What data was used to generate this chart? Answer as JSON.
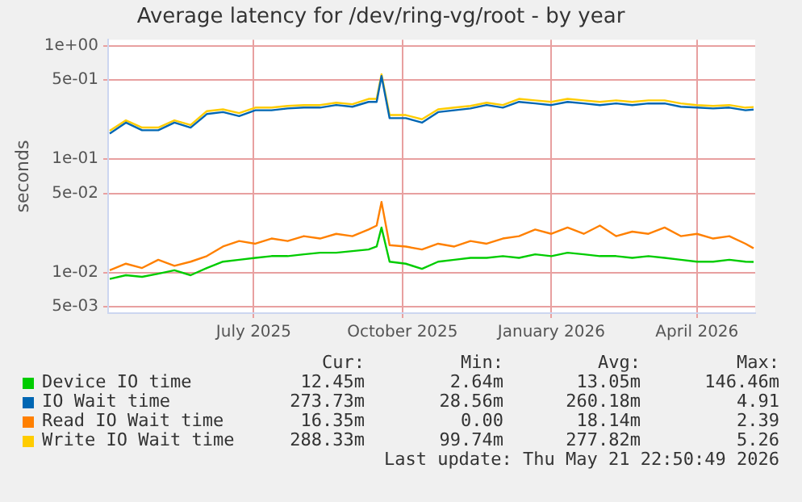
{
  "chart_data": {
    "type": "line",
    "title": "Average latency for /dev/ring-vg/root - by year",
    "ylabel": "seconds",
    "log": "y",
    "grid": true,
    "legend": "bottom",
    "marker": "none",
    "line_style": "solid",
    "xlim": [
      "2025-04-17",
      "2026-05-22"
    ],
    "xticks": [
      {
        "value": "2025-07-16",
        "label": "July 2025"
      },
      {
        "value": "2025-10-16",
        "label": "October 2025"
      },
      {
        "value": "2026-01-16",
        "label": "January 2026"
      },
      {
        "value": "2026-04-16",
        "label": "April 2026"
      }
    ],
    "ylim": [
      0.0044,
      1.13
    ],
    "yticks": [
      {
        "value": 0.005,
        "label": "5e-03"
      },
      {
        "value": 0.01,
        "label": "1e-02"
      },
      {
        "value": 0.05,
        "label": "5e-02"
      },
      {
        "value": 0.1,
        "label": "1e-01"
      },
      {
        "value": 0.5,
        "label": "5e-01"
      },
      {
        "value": 1,
        "label": "1e+00"
      }
    ],
    "x": [
      "2025-04-18",
      "2025-04-28",
      "2025-05-08",
      "2025-05-18",
      "2025-05-28",
      "2025-06-07",
      "2025-06-17",
      "2025-06-27",
      "2025-07-07",
      "2025-07-17",
      "2025-07-27",
      "2025-08-06",
      "2025-08-16",
      "2025-08-26",
      "2025-09-05",
      "2025-09-15",
      "2025-09-25",
      "2025-09-30",
      "2025-10-03",
      "2025-10-08",
      "2025-10-18",
      "2025-10-28",
      "2025-11-07",
      "2025-11-17",
      "2025-11-27",
      "2025-12-07",
      "2025-12-17",
      "2025-12-27",
      "2026-01-06",
      "2026-01-16",
      "2026-01-26",
      "2026-02-05",
      "2026-02-15",
      "2026-02-25",
      "2026-03-07",
      "2026-03-17",
      "2026-03-27",
      "2026-04-06",
      "2026-04-16",
      "2026-04-26",
      "2026-05-06",
      "2026-05-16",
      "2026-05-21"
    ],
    "series": [
      {
        "name": "Device IO time",
        "color": "#00cc00",
        "values": [
          0.0088,
          0.0095,
          0.0092,
          0.0098,
          0.0105,
          0.0095,
          0.011,
          0.0125,
          0.013,
          0.0135,
          0.014,
          0.014,
          0.0145,
          0.015,
          0.015,
          0.0155,
          0.016,
          0.017,
          0.025,
          0.0125,
          0.012,
          0.0108,
          0.0125,
          0.013,
          0.0135,
          0.0135,
          0.014,
          0.0135,
          0.0145,
          0.014,
          0.015,
          0.0145,
          0.014,
          0.014,
          0.0135,
          0.014,
          0.0135,
          0.013,
          0.0125,
          0.0125,
          0.013,
          0.0125,
          0.01245
        ]
      },
      {
        "name": "IO Wait time",
        "color": "#0066b3",
        "values": [
          0.168,
          0.21,
          0.18,
          0.18,
          0.21,
          0.19,
          0.25,
          0.26,
          0.24,
          0.27,
          0.27,
          0.28,
          0.285,
          0.285,
          0.3,
          0.29,
          0.32,
          0.32,
          0.54,
          0.23,
          0.23,
          0.21,
          0.26,
          0.27,
          0.28,
          0.3,
          0.285,
          0.32,
          0.31,
          0.3,
          0.32,
          0.31,
          0.3,
          0.31,
          0.3,
          0.31,
          0.31,
          0.29,
          0.285,
          0.28,
          0.285,
          0.27,
          0.274
        ]
      },
      {
        "name": "Read IO Wait time",
        "color": "#ff8000",
        "values": [
          0.0105,
          0.012,
          0.011,
          0.013,
          0.0115,
          0.0125,
          0.014,
          0.017,
          0.019,
          0.018,
          0.02,
          0.019,
          0.021,
          0.02,
          0.022,
          0.021,
          0.024,
          0.026,
          0.042,
          0.0175,
          0.017,
          0.016,
          0.018,
          0.017,
          0.019,
          0.018,
          0.02,
          0.021,
          0.024,
          0.022,
          0.025,
          0.022,
          0.026,
          0.021,
          0.023,
          0.022,
          0.025,
          0.021,
          0.022,
          0.02,
          0.021,
          0.018,
          0.0164
        ]
      },
      {
        "name": "Write IO Wait time",
        "color": "#ffcc00",
        "values": [
          0.178,
          0.22,
          0.19,
          0.19,
          0.22,
          0.2,
          0.265,
          0.275,
          0.255,
          0.285,
          0.285,
          0.295,
          0.3,
          0.3,
          0.315,
          0.305,
          0.34,
          0.34,
          0.56,
          0.245,
          0.245,
          0.225,
          0.275,
          0.285,
          0.295,
          0.315,
          0.3,
          0.34,
          0.33,
          0.32,
          0.34,
          0.33,
          0.32,
          0.33,
          0.32,
          0.33,
          0.33,
          0.31,
          0.3,
          0.295,
          0.3,
          0.285,
          0.288
        ]
      }
    ],
    "annotations": [
      "Cur:",
      "Min:",
      "Avg:",
      "Max:",
      "12.45m",
      "2.64m",
      "13.05m",
      "146.46m",
      "273.73m",
      "28.56m",
      "260.18m",
      "4.91",
      "16.35m",
      "0.00",
      "18.14m",
      "2.39",
      "288.33m",
      "99.74m",
      "277.82m",
      "5.26",
      "Last update: Thu May 21 22:50:49 2026"
    ]
  }
}
